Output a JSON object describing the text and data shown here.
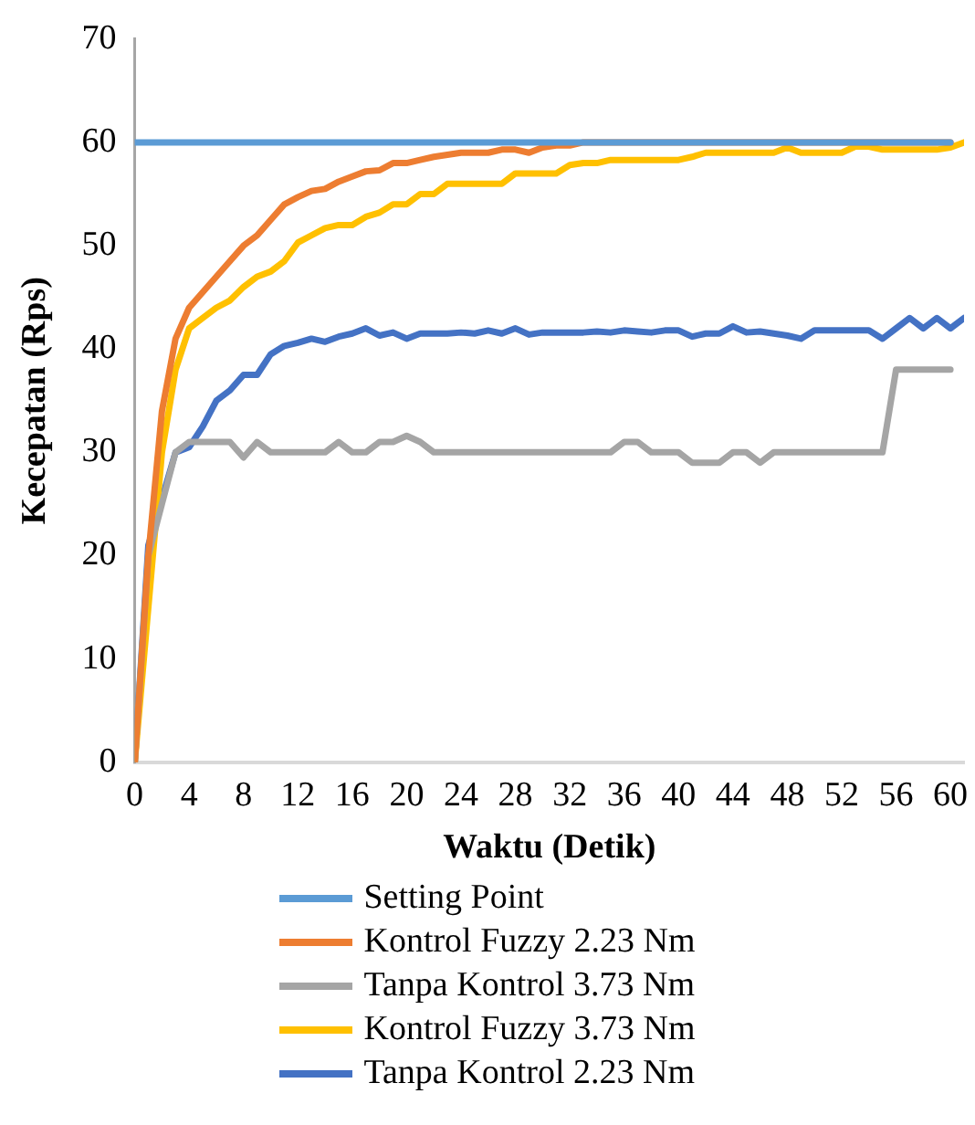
{
  "chart_data": {
    "type": "line",
    "xlabel": "Waktu (Detik)",
    "ylabel": "Kecepatan (Rps)",
    "xlim": [
      0,
      61
    ],
    "xticks": [
      0,
      4,
      8,
      12,
      16,
      20,
      24,
      28,
      32,
      36,
      40,
      44,
      48,
      52,
      56,
      60
    ],
    "ylim": [
      0,
      70
    ],
    "yticks": [
      0,
      10,
      20,
      30,
      40,
      50,
      60,
      70
    ],
    "grid": false,
    "legend": "bottom",
    "marker": "none",
    "line_style": "solid",
    "series": [
      {
        "name": "Setting Point",
        "color": "#5b9bd5",
        "x": [
          0,
          60
        ],
        "values": [
          60,
          60
        ]
      },
      {
        "name": "Kontrol Fuzzy 2.23 Nm",
        "color": "#ed7d31",
        "x": [
          0,
          1,
          2,
          3,
          4,
          5,
          6,
          7,
          8,
          9,
          10,
          11,
          12,
          13,
          14,
          15,
          16,
          17,
          18,
          19,
          20,
          21,
          22,
          23,
          24,
          25,
          26,
          27,
          28,
          29,
          30,
          31,
          32,
          33,
          60
        ],
        "values": [
          0,
          20,
          34,
          41,
          44,
          45.5,
          47,
          48.5,
          50,
          51,
          52.5,
          54,
          54.7,
          55.3,
          55.5,
          56.2,
          56.7,
          57.2,
          57.3,
          58,
          58,
          58.3,
          58.6,
          58.8,
          59,
          59,
          59,
          59.3,
          59.3,
          59,
          59.5,
          59.7,
          59.7,
          60,
          60
        ]
      },
      {
        "name": "Tanpa Kontrol 3.73 Nm",
        "color": "#a5a5a5",
        "x": [
          0,
          1,
          2,
          3,
          4,
          5,
          6,
          7,
          8,
          9,
          10,
          11,
          12,
          13,
          14,
          15,
          16,
          17,
          18,
          19,
          20,
          21,
          22,
          23,
          35,
          36,
          37,
          38,
          39,
          40,
          41,
          42,
          43,
          44,
          45,
          46,
          47,
          48,
          54,
          55,
          56,
          57,
          58,
          59,
          60
        ],
        "values": [
          0,
          20,
          25,
          30,
          31,
          31,
          31,
          31,
          29.5,
          31,
          30,
          30,
          30,
          30,
          30,
          31,
          30,
          30,
          31,
          31,
          31.6,
          31,
          30,
          30,
          30,
          31,
          31,
          30,
          30,
          30,
          29,
          29,
          29,
          30,
          30,
          29,
          30,
          30,
          30,
          30,
          38,
          38,
          38,
          38,
          38
        ]
      },
      {
        "name": "Kontrol Fuzzy 3.73 Nm",
        "color": "#ffc000",
        "x": [
          0,
          1,
          2,
          3,
          4,
          5,
          6,
          7,
          8,
          9,
          10,
          11,
          12,
          13,
          14,
          15,
          16,
          17,
          18,
          19,
          20,
          21,
          22,
          23,
          27,
          28,
          31,
          32,
          33,
          34,
          35,
          40,
          41,
          42,
          47,
          48,
          49,
          52,
          53,
          54,
          55,
          59,
          60,
          61
        ],
        "values": [
          0,
          15,
          30,
          38,
          42,
          43,
          44,
          44.7,
          46,
          47,
          47.5,
          48.5,
          50.3,
          51,
          51.7,
          52,
          52,
          52.8,
          53.2,
          54,
          54,
          55,
          55,
          56,
          56,
          57,
          57,
          57.8,
          58,
          58,
          58.3,
          58.3,
          58.6,
          59,
          59,
          59.5,
          59,
          59,
          59.6,
          59.6,
          59.3,
          59.3,
          59.5,
          60
        ]
      },
      {
        "name": "Tanpa Kontrol 2.23 Nm",
        "color": "#4472c4",
        "x": [
          0,
          1,
          2,
          3,
          4,
          5,
          6,
          7,
          8,
          9,
          10,
          11,
          12,
          13,
          14,
          15,
          16,
          17,
          18,
          19,
          20,
          21,
          22,
          23,
          24,
          25,
          26,
          27,
          28,
          29,
          30,
          31,
          32,
          33,
          34,
          35,
          36,
          37,
          38,
          39,
          40,
          41,
          42,
          43,
          44,
          45,
          46,
          47,
          48,
          49,
          50,
          51,
          52,
          53,
          54,
          55,
          56,
          57,
          58,
          59,
          60,
          61
        ],
        "values": [
          0,
          21,
          25.5,
          30,
          30.5,
          32.5,
          35,
          36,
          37.5,
          37.5,
          39.5,
          40.3,
          40.6,
          41,
          40.7,
          41.2,
          41.5,
          42,
          41.3,
          41.6,
          41,
          41.5,
          41.5,
          41.5,
          41.6,
          41.5,
          41.8,
          41.5,
          42,
          41.4,
          41.6,
          41.6,
          41.6,
          41.6,
          41.7,
          41.6,
          41.8,
          41.7,
          41.6,
          41.8,
          41.8,
          41.2,
          41.5,
          41.5,
          42.2,
          41.6,
          41.7,
          41.5,
          41.3,
          41,
          41.8,
          41.8,
          41.8,
          41.8,
          41.8,
          41,
          42,
          43,
          42,
          43,
          42,
          43
        ]
      }
    ]
  }
}
